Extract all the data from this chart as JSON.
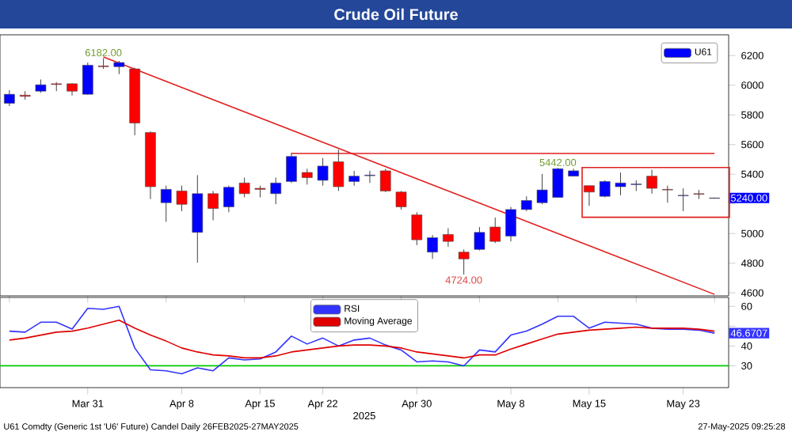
{
  "chart_data": [
    {
      "type": "candlestick",
      "title": "Crude Oil Future",
      "legend": "top right",
      "tick_labels": "y",
      "categories": [
        null,
        null,
        null,
        null,
        null,
        null,
        null,
        null,
        null,
        null,
        null,
        null,
        null,
        null,
        null,
        null,
        null,
        null,
        null,
        null,
        null,
        null,
        null,
        null,
        null,
        null,
        null,
        null,
        null,
        null,
        null,
        null,
        null,
        null,
        null,
        null,
        null,
        null,
        null,
        null,
        null,
        null,
        null,
        null,
        null,
        null
      ],
      "ylim": [
        4580,
        6340
      ],
      "yticks": [
        4600,
        4800,
        5000,
        {
          "value": 5200,
          "label": null
        },
        5400,
        5600,
        5800,
        6000,
        6200
      ],
      "series": [
        {
          "type": "line",
          "values": [
            null,
            null,
            null,
            null,
            null,
            null,
            6190,
            null,
            null,
            null,
            null,
            null,
            null,
            null,
            null,
            null,
            null,
            null,
            null,
            null,
            null,
            null,
            null,
            null,
            null,
            null,
            null,
            null,
            null,
            null,
            null,
            null,
            null,
            null,
            null,
            null,
            null,
            null,
            null,
            null,
            null,
            null,
            null,
            null,
            null,
            4590
          ],
          "color": "#e02020"
        },
        {
          "type": "line",
          "values": [
            null,
            null,
            null,
            null,
            null,
            null,
            null,
            null,
            null,
            null,
            null,
            null,
            null,
            null,
            null,
            null,
            null,
            null,
            5540,
            null,
            null,
            null,
            null,
            null,
            null,
            null,
            null,
            null,
            null,
            null,
            null,
            null,
            null,
            null,
            null,
            null,
            null,
            null,
            null,
            null,
            null,
            null,
            null,
            null,
            null,
            5540
          ],
          "color": "#e02020"
        },
        {
          "type": "candlestick",
          "name": "U61",
          "color": "#0000ff",
          "ohlc": [
            [
              5878,
              5967,
              5860,
              5939
            ],
            [
              5933,
              5960,
              5903,
              5925
            ],
            [
              5960,
              6039,
              5949,
              6003
            ],
            [
              6010,
              6021,
              5960,
              6005
            ],
            [
              6010,
              6014,
              5931,
              5960
            ],
            [
              5939,
              6153,
              5935,
              6135
            ],
            [
              6130,
              6182,
              6110,
              6125
            ],
            [
              6125,
              6164,
              6075,
              6153
            ],
            [
              6110,
              6118,
              5663,
              5745
            ],
            [
              5681,
              5690,
              5233,
              5316
            ],
            [
              5208,
              5323,
              5079,
              5298
            ],
            [
              5287,
              5323,
              5151,
              5197
            ],
            [
              5008,
              5394,
              4804,
              5269
            ],
            [
              5269,
              5287,
              5090,
              5169
            ],
            [
              5180,
              5323,
              5144,
              5312
            ],
            [
              5341,
              5377,
              5244,
              5269
            ],
            [
              5305,
              5323,
              5244,
              5298
            ],
            [
              5269,
              5377,
              5198,
              5341
            ],
            [
              5351,
              5545,
              5341,
              5520
            ],
            [
              5412,
              5437,
              5330,
              5377
            ],
            [
              5359,
              5509,
              5323,
              5455
            ],
            [
              5484,
              5566,
              5287,
              5316
            ],
            [
              5351,
              5423,
              5323,
              5387
            ],
            [
              5390,
              5423,
              5341,
              5394
            ],
            [
              5423,
              5437,
              5280,
              5287
            ],
            [
              5280,
              5287,
              5162,
              5180
            ],
            [
              5126,
              5144,
              4922,
              4958
            ],
            [
              4875,
              4990,
              4829,
              4972
            ],
            [
              4994,
              5036,
              4911,
              4947
            ],
            [
              4875,
              4893,
              4724,
              4829
            ],
            [
              4893,
              5044,
              4886,
              5008
            ],
            [
              5044,
              5108,
              4936,
              4947
            ],
            [
              4983,
              5180,
              4947,
              5162
            ],
            [
              5162,
              5251,
              5151,
              5223
            ],
            [
              5208,
              5402,
              5198,
              5294
            ],
            [
              5244,
              5442,
              5244,
              5437
            ],
            [
              5387,
              5437,
              5387,
              5423
            ],
            [
              5323,
              5323,
              5187,
              5280
            ],
            [
              5251,
              5359,
              5244,
              5351
            ],
            [
              5316,
              5412,
              5258,
              5341
            ],
            [
              5330,
              5359,
              5287,
              5334
            ],
            [
              5387,
              5430,
              5269,
              5305
            ],
            [
              5298,
              5323,
              5208,
              5294
            ],
            [
              5255,
              5305,
              5151,
              5258
            ],
            [
              5269,
              5294,
              5233,
              5265
            ],
            [
              5237,
              5242,
              5237,
              5240
            ]
          ],
          "colors": [
            "#0000ff",
            "#ff0000",
            "#0000ff",
            "#ff0000",
            "#ff0000",
            "#0000ff",
            "#ff0000",
            "#0000ff",
            "#ff0000",
            "#ff0000",
            "#0000ff",
            "#ff0000",
            "#0000ff",
            "#ff0000",
            "#0000ff",
            "#ff0000",
            "#ff0000",
            "#0000ff",
            "#0000ff",
            "#ff0000",
            "#0000ff",
            "#ff0000",
            "#0000ff",
            "#0000ff",
            "#ff0000",
            "#ff0000",
            "#ff0000",
            "#0000ff",
            "#ff0000",
            "#ff0000",
            "#0000ff",
            "#ff0000",
            "#0000ff",
            "#0000ff",
            "#0000ff",
            "#0000ff",
            "#0000ff",
            "#ff0000",
            "#0000ff",
            "#0000ff",
            "#0000ff",
            "#ff0000",
            "#ff0000",
            "#0000ff",
            "#ff0000",
            "#0000ff"
          ]
        }
      ],
      "annotations": [
        {
          "text": "6182.00",
          "y": 6182
        },
        {
          "text": "5442.00",
          "y": 5442
        },
        {
          "text": "4724.00",
          "y": 4724
        },
        "5240.00"
      ]
    },
    {
      "type": "line",
      "legend": "top",
      "xlabel": "2025",
      "categories": [
        null,
        null,
        null,
        null,
        null,
        "Mar 31",
        null,
        null,
        null,
        null,
        null,
        "Apr 8",
        null,
        null,
        null,
        null,
        "Apr 15",
        null,
        null,
        null,
        "Apr 22",
        null,
        null,
        null,
        null,
        null,
        "Apr 30",
        null,
        null,
        null,
        null,
        null,
        "May 8",
        null,
        null,
        null,
        null,
        "May 15",
        null,
        null,
        null,
        null,
        null,
        "May 23",
        null,
        null
      ],
      "ylim": [
        19,
        64.5
      ],
      "yticks": [
        30,
        40,
        {
          "value": 50,
          "label": null
        },
        60
      ],
      "series": [
        {
          "name": "RSI",
          "color": "#3333ff",
          "values": [
            47.5,
            47,
            52,
            52,
            48.5,
            59,
            58.5,
            60,
            39,
            28,
            27.5,
            26,
            29,
            27.5,
            34,
            33,
            33.5,
            37,
            45,
            41,
            44,
            40,
            43,
            44,
            40.5,
            38,
            32,
            32.5,
            32,
            30,
            38,
            37,
            45.5,
            47.5,
            51,
            55,
            55,
            49,
            52,
            51.5,
            51,
            49,
            48.5,
            48.5,
            48,
            46.5
          ]
        },
        {
          "name": "Moving Average",
          "color": "#e00000",
          "values": [
            43,
            44,
            45.5,
            47,
            47.5,
            49,
            51,
            53,
            49,
            45.5,
            42.5,
            39,
            37,
            35.5,
            35,
            34,
            34,
            35,
            37,
            38,
            39,
            40,
            40.5,
            40.5,
            40,
            39,
            37,
            36,
            35,
            34,
            35.5,
            35.5,
            38.5,
            41,
            43.5,
            46,
            47,
            48,
            48.5,
            49,
            49.5,
            49,
            49,
            49,
            48.5,
            47.5
          ]
        }
      ],
      "ref_lines": [
        {
          "axis": "y",
          "value": 30,
          "color": "#00cc00"
        }
      ],
      "annotations": [
        "46.6707",
        "U61 Comdty (Generic 1st 'U6' Future) Candel  Daily 26FEB2025-27MAY2025",
        "27-May-2025 09:25:28"
      ]
    }
  ]
}
